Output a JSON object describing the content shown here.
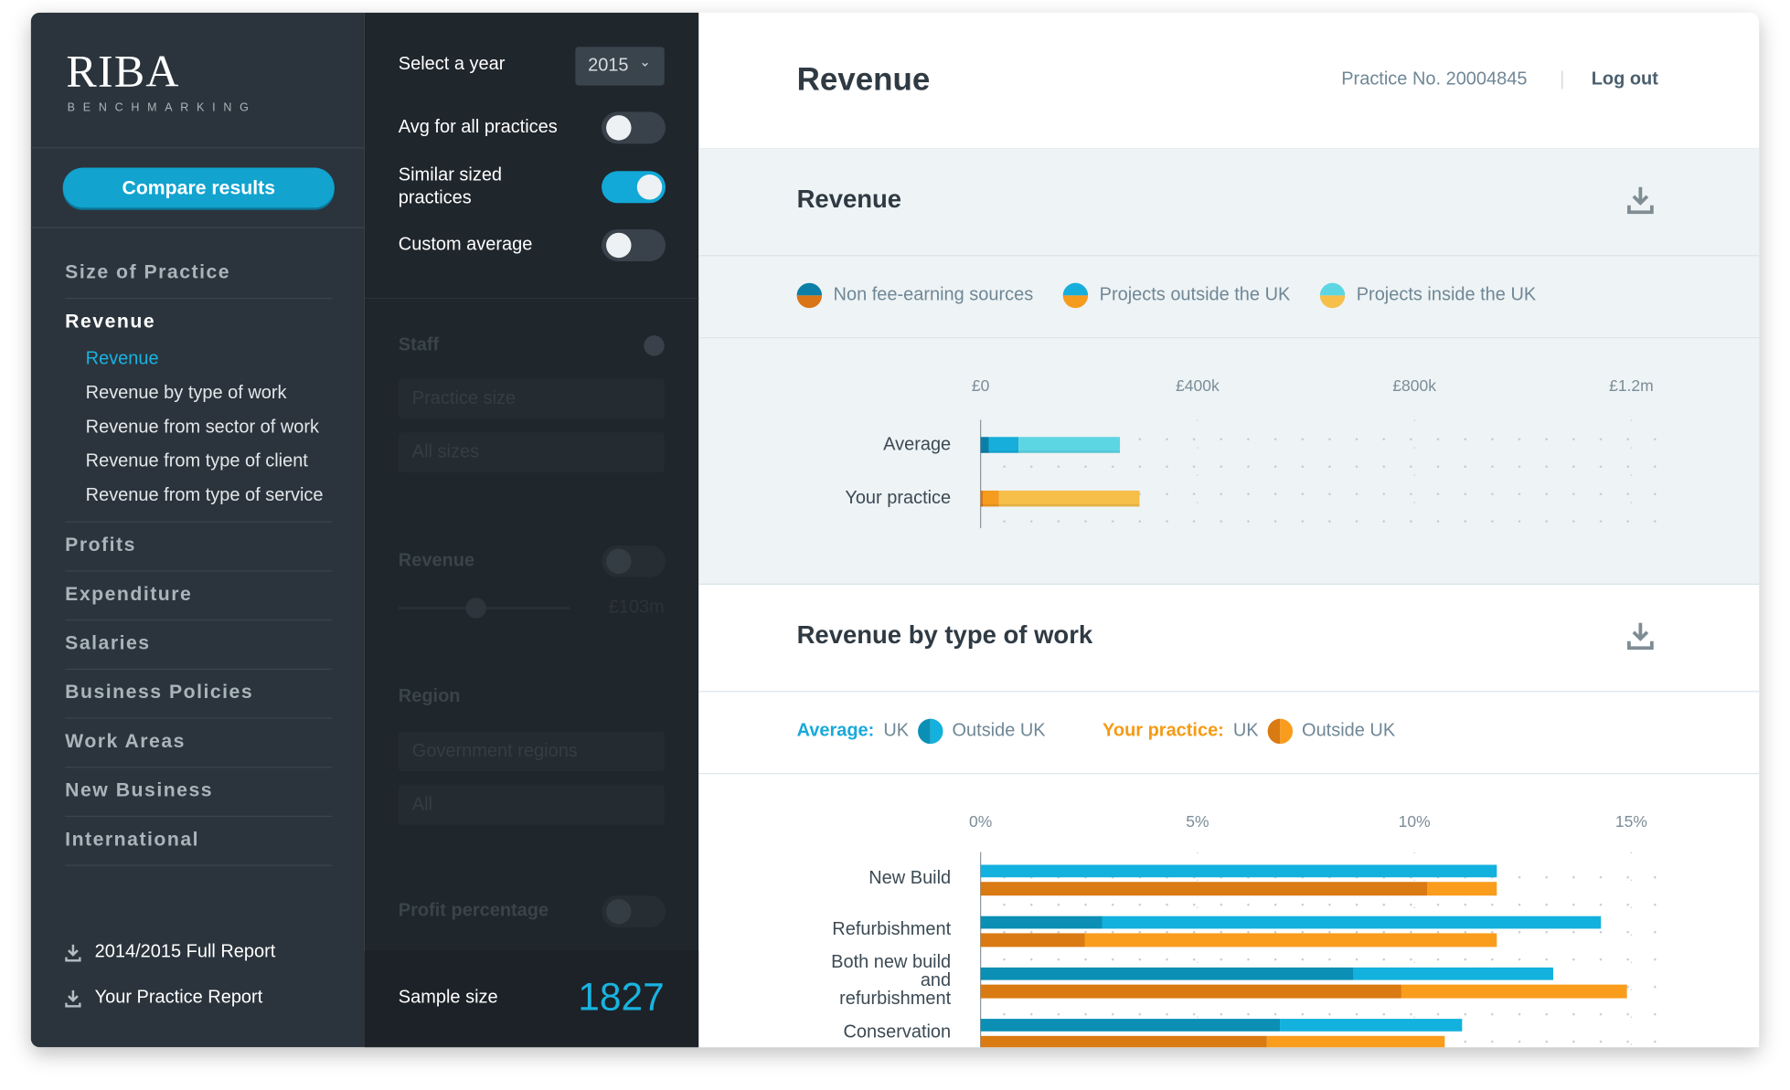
{
  "sidebar": {
    "logo": "RIBA",
    "logo_subtitle": "BENCHMARKING",
    "compare_button": "Compare results",
    "nav": [
      {
        "label": "Size of Practice"
      },
      {
        "label": "Revenue",
        "active": true,
        "items": [
          "Revenue",
          "Revenue by type of work",
          "Revenue from sector of work",
          "Revenue from type of client",
          "Revenue from type of service"
        ],
        "active_item": 0
      },
      {
        "label": "Profits"
      },
      {
        "label": "Expenditure"
      },
      {
        "label": "Salaries"
      },
      {
        "label": "Business Policies"
      },
      {
        "label": "Work Areas"
      },
      {
        "label": "New Business"
      },
      {
        "label": "International"
      }
    ],
    "downloads": [
      "2014/2015 Full Report",
      "Your Practice Report"
    ]
  },
  "filters": {
    "year_label": "Select a year",
    "year": "2015",
    "toggles": [
      {
        "label": "Avg for all practices",
        "on": false
      },
      {
        "label": "Similar sized practices",
        "on": true
      },
      {
        "label": "Custom average",
        "on": false
      }
    ],
    "staff": {
      "label": "Staff",
      "selects": [
        "Practice size",
        "All sizes"
      ]
    },
    "revenue": {
      "label": "Revenue",
      "slider_value": "£103m"
    },
    "region": {
      "label": "Region",
      "selects": [
        "Government regions",
        "All"
      ]
    },
    "profit": {
      "label": "Profit percentage"
    },
    "sample_label": "Sample size",
    "sample_size": 1827
  },
  "header": {
    "title": "Revenue",
    "practice_no": "Practice No. 20004845",
    "logout": "Log out"
  },
  "chart_data": [
    {
      "type": "bar",
      "stacked": true,
      "title": "Revenue",
      "categories": [
        "Average",
        "Your practice"
      ],
      "series": [
        {
          "name": "Non fee-earning sources",
          "colors": [
            "#0b7fa8",
            "#d97516"
          ],
          "values": [
            15000,
            4000
          ]
        },
        {
          "name": "Projects outside the UK",
          "colors": [
            "#17aedc",
            "#f59c1f"
          ],
          "values": [
            55000,
            30000
          ]
        },
        {
          "name": "Projects inside the UK",
          "colors": [
            "#5dd6e4",
            "#f6bf4a"
          ],
          "values": [
            187000,
            259000
          ]
        }
      ],
      "xlim": [
        0,
        1200000
      ],
      "xticks": [
        {
          "value": 0,
          "label": "£0"
        },
        {
          "value": 400000,
          "label": "£400k"
        },
        {
          "value": 800000,
          "label": "£800k"
        },
        {
          "value": 1200000,
          "label": "£1.2m"
        }
      ],
      "grid": true
    },
    {
      "type": "bar",
      "stacked": true,
      "title": "Revenue by type of work",
      "categories": [
        "New Build",
        "Refurbishment",
        "Both new build and refurbishment",
        "Conservation"
      ],
      "groups": [
        {
          "label": "Average:",
          "color": "#19a9d9"
        },
        {
          "label": "Your practice:",
          "color": "#f59b14"
        }
      ],
      "series": [
        {
          "group": 0,
          "name": "UK",
          "color": "#0b8fb5",
          "values": [
            0,
            2.8,
            8.6,
            6.9
          ]
        },
        {
          "group": 0,
          "name": "Outside UK",
          "color": "#13b1dd",
          "values": [
            11.9,
            11.5,
            4.6,
            4.2
          ]
        },
        {
          "group": 1,
          "name": "UK",
          "color": "#d97a12",
          "values": [
            10.3,
            2.4,
            9.7,
            6.6
          ]
        },
        {
          "group": 1,
          "name": "Outside UK",
          "color": "#fa9c1c",
          "values": [
            1.6,
            9.5,
            5.2,
            4.1
          ]
        }
      ],
      "xlim": [
        0,
        15
      ],
      "xticks": [
        {
          "value": 0,
          "label": "0%"
        },
        {
          "value": 5,
          "label": "5%"
        },
        {
          "value": 10,
          "label": "10%"
        },
        {
          "value": 15,
          "label": "15%"
        }
      ],
      "grid": true
    }
  ]
}
